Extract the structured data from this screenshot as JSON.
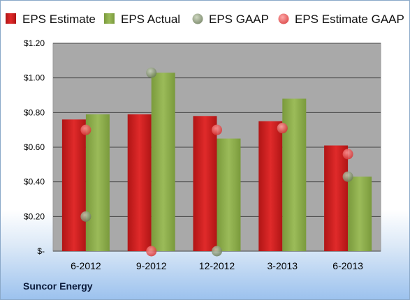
{
  "company": "Suncor Energy",
  "chart_data": {
    "type": "bar",
    "categories": [
      "6-2012",
      "9-2012",
      "12-2012",
      "3-2013",
      "6-2013"
    ],
    "series": [
      {
        "name": "EPS Estimate",
        "kind": "bar",
        "color": "#cc1f1f",
        "values": [
          0.76,
          0.79,
          0.78,
          0.75,
          0.61
        ]
      },
      {
        "name": "EPS Actual",
        "kind": "bar",
        "color": "#8aa84a",
        "values": [
          0.79,
          1.03,
          0.65,
          0.88,
          0.43
        ]
      },
      {
        "name": "EPS GAAP",
        "kind": "marker",
        "color": "#8a9a78",
        "values": [
          0.2,
          1.03,
          0.0,
          0.71,
          0.43
        ]
      },
      {
        "name": "EPS Estimate GAAP",
        "kind": "marker",
        "color": "#e64a4a",
        "values": [
          0.7,
          0.0,
          0.7,
          0.71,
          0.56
        ]
      }
    ],
    "ylim": [
      0,
      1.2
    ],
    "yticks": [
      0,
      0.2,
      0.4,
      0.6,
      0.8,
      1.0,
      1.2
    ],
    "ytick_labels": [
      "$-",
      "$0.20",
      "$0.40",
      "$0.60",
      "$0.80",
      "$1.00",
      "$1.20"
    ],
    "grid": true,
    "legend_position": "top",
    "plot_background": "#a9a9a9"
  }
}
